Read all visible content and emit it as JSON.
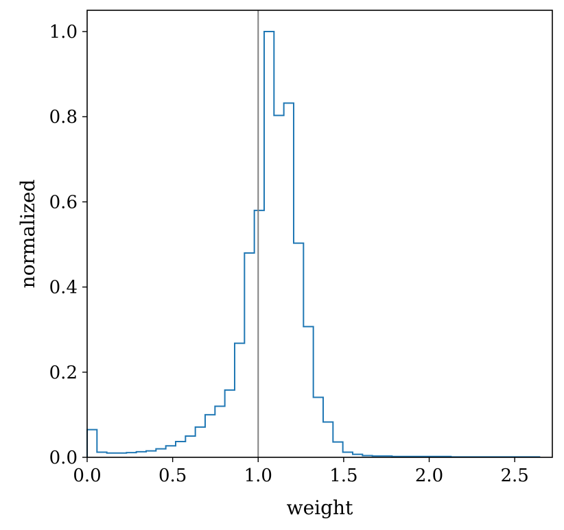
{
  "chart_data": {
    "type": "histogram",
    "xlabel": "weight",
    "ylabel": "normalized",
    "xlim": [
      0.0,
      2.72
    ],
    "ylim": [
      0.0,
      1.05
    ],
    "xticks": [
      0.0,
      0.5,
      1.0,
      1.5,
      2.0,
      2.5
    ],
    "xtick_labels": [
      "0.0",
      "0.5",
      "1.0",
      "1.5",
      "2.0",
      "2.5"
    ],
    "yticks": [
      0.0,
      0.2,
      0.4,
      0.6,
      0.8,
      1.0
    ],
    "ytick_labels": [
      "0.0",
      "0.2",
      "0.4",
      "0.6",
      "0.8",
      "1.0"
    ],
    "bin_edges": [
      0.0,
      0.0575,
      0.115,
      0.1725,
      0.23,
      0.2875,
      0.345,
      0.4025,
      0.46,
      0.5175,
      0.575,
      0.6325,
      0.69,
      0.7475,
      0.805,
      0.8625,
      0.92,
      0.9775,
      1.035,
      1.0925,
      1.15,
      1.2075,
      1.265,
      1.3225,
      1.38,
      1.4375,
      1.495,
      1.5525,
      1.61,
      1.6675,
      1.725,
      1.7825,
      1.84,
      1.8975,
      1.955,
      2.0125,
      2.07,
      2.1275,
      2.185,
      2.2425,
      2.3,
      2.3575,
      2.415,
      2.4725,
      2.53,
      2.5875,
      2.645
    ],
    "values": [
      0.065,
      0.012,
      0.01,
      0.01,
      0.011,
      0.013,
      0.015,
      0.02,
      0.027,
      0.037,
      0.05,
      0.071,
      0.1,
      0.12,
      0.158,
      0.268,
      0.48,
      0.58,
      1.0,
      0.803,
      0.832,
      0.503,
      0.307,
      0.141,
      0.083,
      0.036,
      0.012,
      0.007,
      0.004,
      0.003,
      0.003,
      0.002,
      0.002,
      0.002,
      0.002,
      0.002,
      0.002,
      0.001,
      0.001,
      0.001,
      0.001,
      0.001,
      0.001,
      0.001,
      0.001,
      0.001
    ],
    "line_color": "#1f77b4",
    "reference_line": {
      "x": 1.0,
      "color": "#808080"
    },
    "grid": false,
    "legend": "none"
  }
}
